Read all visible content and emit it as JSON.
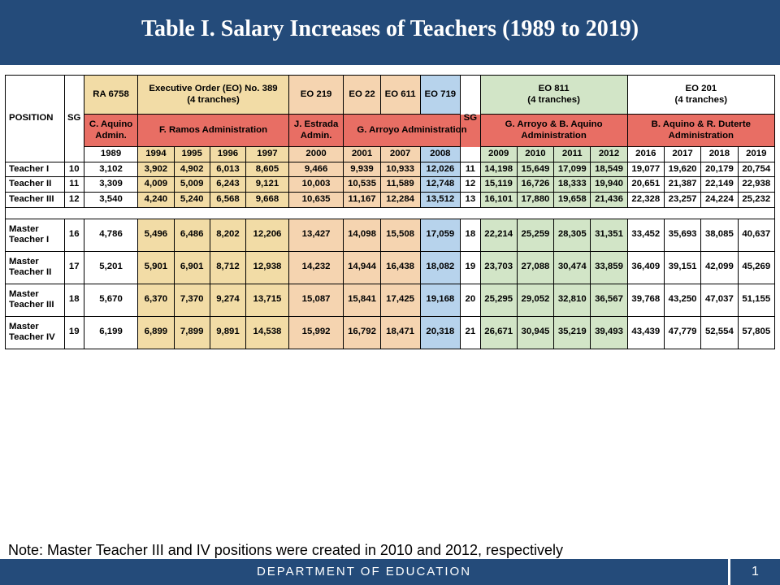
{
  "title": "Table I. Salary Increases of Teachers (1989 to 2019)",
  "note": "Note: Master Teacher III and IV positions were created in 2010 and 2012, respectively",
  "footer": {
    "dept": "DEPARTMENT  OF  EDUCATION",
    "page": "1"
  },
  "headers": {
    "position": "POSITION",
    "sg": "SG",
    "sg2": "SG",
    "ra": "RA 6758",
    "eo389": "Executive Order (EO) No. 389\n(4 tranches)",
    "eo219": "EO 219",
    "eo22": "EO 22",
    "eo611": "EO 611",
    "eo719": "EO 719",
    "eo811": "EO 811\n(4 tranches)",
    "eo201": "EO 201\n(4 tranches)",
    "admin_c": "C. Aquino\nAdmin.",
    "admin_r": "F. Ramos Administration",
    "admin_e": "J. Estrada\nAdmin.",
    "admin_a": "G. Arroyo Administration",
    "admin_ab": "G. Arroyo & B. Aquino\nAdministration",
    "admin_ad": "B. Aquino & R. Duterte\nAdministration"
  },
  "years": [
    "1989",
    "1994",
    "1995",
    "1996",
    "1997",
    "2000",
    "2001",
    "2007",
    "2008",
    "2009",
    "2010",
    "2011",
    "2012",
    "2016",
    "2017",
    "2018",
    "2019"
  ],
  "rows": [
    {
      "pos": "Teacher I",
      "sg": "10",
      "sg2": "11",
      "v": [
        "3,102",
        "3,902",
        "4,902",
        "6,013",
        "8,605",
        "9,466",
        "9,939",
        "10,933",
        "12,026",
        "14,198",
        "15,649",
        "17,099",
        "18,549",
        "19,077",
        "19,620",
        "20,179",
        "20,754"
      ]
    },
    {
      "pos": "Teacher II",
      "sg": "11",
      "sg2": "12",
      "v": [
        "3,309",
        "4,009",
        "5,009",
        "6,243",
        "9,121",
        "10,003",
        "10,535",
        "11,589",
        "12,748",
        "15,119",
        "16,726",
        "18,333",
        "19,940",
        "20,651",
        "21,387",
        "22,149",
        "22,938"
      ]
    },
    {
      "pos": "Teacher III",
      "sg": "12",
      "sg2": "13",
      "v": [
        "3,540",
        "4,240",
        "5,240",
        "6,568",
        "9,668",
        "10,635",
        "11,167",
        "12,284",
        "13,512",
        "16,101",
        "17,880",
        "19,658",
        "21,436",
        "22,328",
        "23,257",
        "24,224",
        "25,232"
      ]
    }
  ],
  "mrows": [
    {
      "pos": "Master\nTeacher I",
      "sg": "16",
      "sg2": "18",
      "v": [
        "4,786",
        "5,496",
        "6,486",
        "8,202",
        "12,206",
        "13,427",
        "14,098",
        "15,508",
        "17,059",
        "22,214",
        "25,259",
        "28,305",
        "31,351",
        "33,452",
        "35,693",
        "38,085",
        "40,637"
      ]
    },
    {
      "pos": "Master\nTeacher II",
      "sg": "17",
      "sg2": "19",
      "v": [
        "5,201",
        "5,901",
        "6,901",
        "8,712",
        "12,938",
        "14,232",
        "14,944",
        "16,438",
        "18,082",
        "23,703",
        "27,088",
        "30,474",
        "33,859",
        "36,409",
        "39,151",
        "42,099",
        "45,269"
      ]
    },
    {
      "pos": "Master\nTeacher III",
      "sg": "18",
      "sg2": "20",
      "v": [
        "5,670",
        "6,370",
        "7,370",
        "9,274",
        "13,715",
        "15,087",
        "15,841",
        "17,425",
        "19,168",
        "25,295",
        "29,052",
        "32,810",
        "36,567",
        "39,768",
        "43,250",
        "47,037",
        "51,155"
      ]
    },
    {
      "pos": "Master\nTeacher IV",
      "sg": "19",
      "sg2": "21",
      "v": [
        "6,199",
        "6,899",
        "7,899",
        "9,891",
        "14,538",
        "15,992",
        "16,792",
        "18,471",
        "20,318",
        "26,671",
        "30,945",
        "35,219",
        "39,493",
        "43,439",
        "47,779",
        "52,554",
        "57,805"
      ]
    }
  ],
  "colColors": [
    "c-wht",
    "c-ra",
    "c-ra",
    "c-ra",
    "c-ra",
    "c-pch",
    "c-pch",
    "c-pch",
    "c-blu",
    "c-grn",
    "c-grn",
    "c-grn",
    "c-grn",
    "c-wht",
    "c-wht",
    "c-wht",
    "c-wht"
  ]
}
